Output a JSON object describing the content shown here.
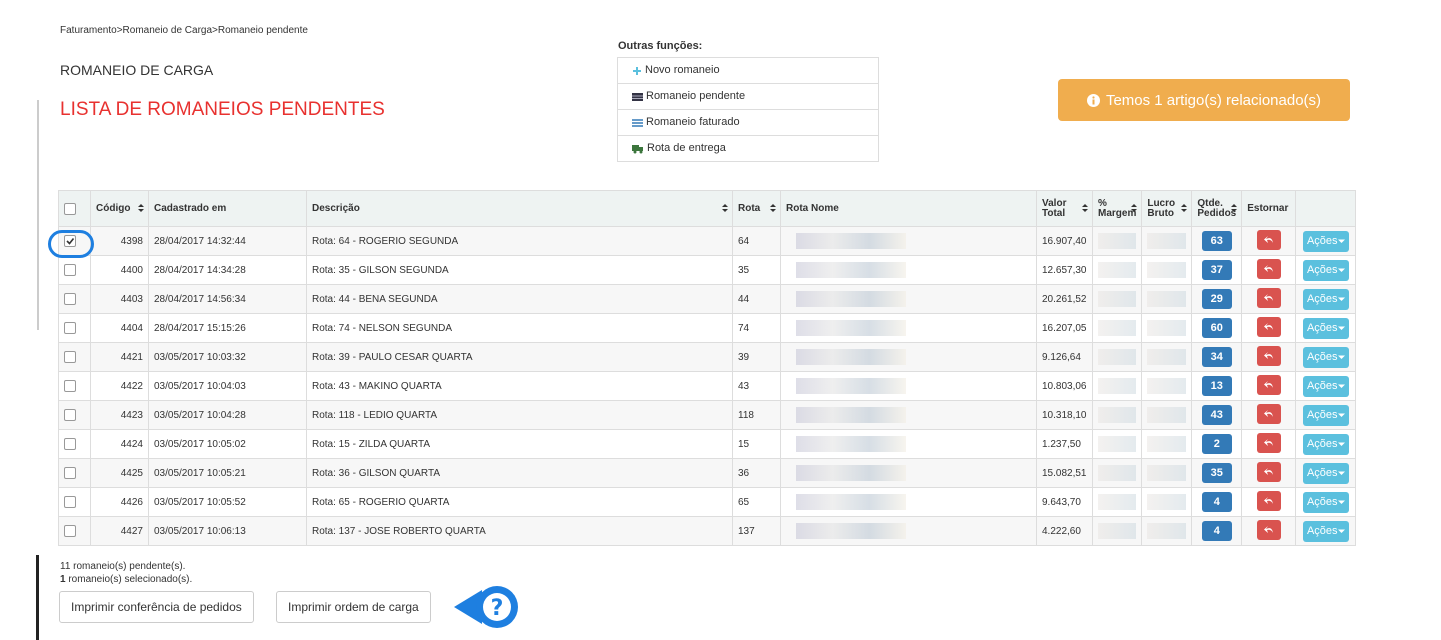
{
  "breadcrumb": "Faturamento>Romaneio de Carga>Romaneio pendente",
  "header": {
    "title": "ROMANEIO DE CARGA",
    "subtitle": "LISTA DE ROMANEIOS PENDENTES"
  },
  "other_functions": {
    "title": "Outras funções:",
    "items": [
      "Novo romaneio",
      "Romaneio pendente",
      "Romaneio faturado",
      "Rota de entrega"
    ]
  },
  "alert": "Temos 1 artigo(s) relacionado(s)",
  "table": {
    "headers": [
      "Código",
      "Cadastrado em",
      "Descrição",
      "Rota",
      "Rota Nome",
      "Valor Total",
      "% Margem",
      "Lucro Bruto",
      "Qtde. Pedidos",
      "Estornar"
    ],
    "actions_label": "Ações",
    "rows": [
      [
        "4398",
        "28/04/2017 14:32:44",
        "Rota: 64 - ROGERIO SEGUNDA",
        "64",
        "16.907,40",
        "63"
      ],
      [
        "4400",
        "28/04/2017 14:34:28",
        "Rota: 35 - GILSON SEGUNDA",
        "35",
        "12.657,30",
        "37"
      ],
      [
        "4403",
        "28/04/2017 14:56:34",
        "Rota: 44 - BENA SEGUNDA",
        "44",
        "20.261,52",
        "29"
      ],
      [
        "4404",
        "28/04/2017 15:15:26",
        "Rota: 74 - NELSON SEGUNDA",
        "74",
        "16.207,05",
        "60"
      ],
      [
        "4421",
        "03/05/2017 10:03:32",
        "Rota: 39 - PAULO CESAR QUARTA",
        "39",
        "9.126,64",
        "34"
      ],
      [
        "4422",
        "03/05/2017 10:04:03",
        "Rota: 43 - MAKINO QUARTA",
        "43",
        "10.803,06",
        "13"
      ],
      [
        "4423",
        "03/05/2017 10:04:28",
        "Rota: 118 - LEDIO QUARTA",
        "118",
        "10.318,10",
        "43"
      ],
      [
        "4424",
        "03/05/2017 10:05:02",
        "Rota: 15 - ZILDA QUARTA",
        "15",
        "1.237,50",
        "2"
      ],
      [
        "4425",
        "03/05/2017 10:05:21",
        "Rota: 36 - GILSON QUARTA",
        "36",
        "15.082,51",
        "35"
      ],
      [
        "4426",
        "03/05/2017 10:05:52",
        "Rota: 65 - ROGERIO QUARTA",
        "65",
        "9.643,70",
        "4"
      ],
      [
        "4427",
        "03/05/2017 10:06:13",
        "Rota: 137 - JOSE ROBERTO QUARTA",
        "137",
        "4.222,60",
        "4"
      ]
    ]
  },
  "footer": {
    "pending": "11 romaneio(s) pendente(s).",
    "selected_count": "1",
    "selected_text": " romaneio(s) selecionado(s).",
    "buttons": [
      "Imprimir conferência de pedidos",
      "Imprimir ordem de carga"
    ],
    "help_icon": "?"
  }
}
